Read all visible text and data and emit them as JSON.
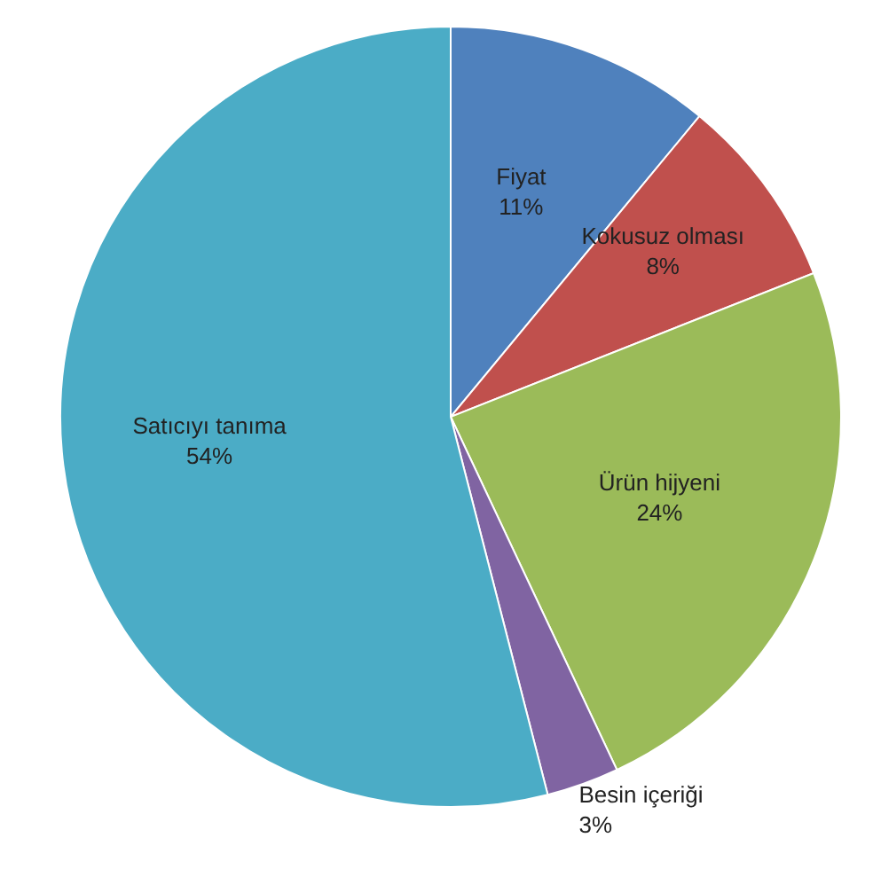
{
  "chart_data": {
    "type": "pie",
    "categories": [
      "Fiyat",
      "Kokusuz olması",
      "Ürün hijyeni",
      "Besin içeriği",
      "Satıcıyı tanıma"
    ],
    "values": [
      11,
      8,
      24,
      3,
      54
    ],
    "colors": [
      "#4f81bd",
      "#c0504d",
      "#9bbb59",
      "#8064a2",
      "#4bacc6"
    ],
    "value_labels": [
      "11%",
      "8%",
      "24%",
      "3%",
      "54%"
    ]
  }
}
